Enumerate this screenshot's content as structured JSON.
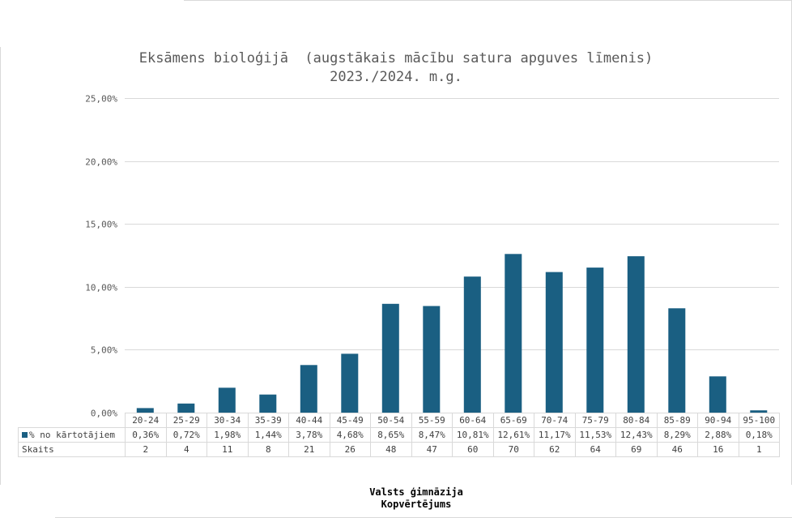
{
  "title_line1": "Eksāmens bioloģijā  (augstākais mācību satura apguves līmenis)",
  "title_line2": "2023./2024. m.g.",
  "footer_line1": "Valsts ģimnāzija",
  "footer_line2": "Kopvērtējums",
  "colors": {
    "bar": "#1a5f82",
    "grid": "#d9d9d9"
  },
  "chart_data": {
    "type": "bar",
    "title": "Eksāmens bioloģijā  (augstākais mācību satura apguves līmenis) 2023./2024. m.g.",
    "categories": [
      "20-24",
      "25-29",
      "30-34",
      "35-39",
      "40-44",
      "45-49",
      "50-54",
      "55-59",
      "60-64",
      "65-69",
      "70-74",
      "75-79",
      "80-84",
      "85-89",
      "90-94",
      "95-100"
    ],
    "series": [
      {
        "name": "% no kārtotājiem",
        "values": [
          0.36,
          0.72,
          1.98,
          1.44,
          3.78,
          4.68,
          8.65,
          8.47,
          10.81,
          12.61,
          11.17,
          11.53,
          12.43,
          8.29,
          2.88,
          0.18
        ],
        "labels": [
          "0,36%",
          "0,72%",
          "1,98%",
          "1,44%",
          "3,78%",
          "4,68%",
          "8,65%",
          "8,47%",
          "10,81%",
          "12,61%",
          "11,17%",
          "11,53%",
          "12,43%",
          "8,29%",
          "2,88%",
          "0,18%"
        ]
      }
    ],
    "table_rows": [
      {
        "name": "Skaits",
        "values": [
          "2",
          "4",
          "11",
          "8",
          "21",
          "26",
          "48",
          "47",
          "60",
          "70",
          "62",
          "64",
          "69",
          "46",
          "16",
          "1"
        ]
      }
    ],
    "ylim": [
      0,
      25
    ],
    "yticks": [
      "0,00%",
      "5,00%",
      "10,00%",
      "15,00%",
      "20,00%",
      "25,00%"
    ],
    "ytick_values": [
      0,
      5,
      10,
      15,
      20,
      25
    ],
    "grid": true,
    "legend": "data table"
  }
}
